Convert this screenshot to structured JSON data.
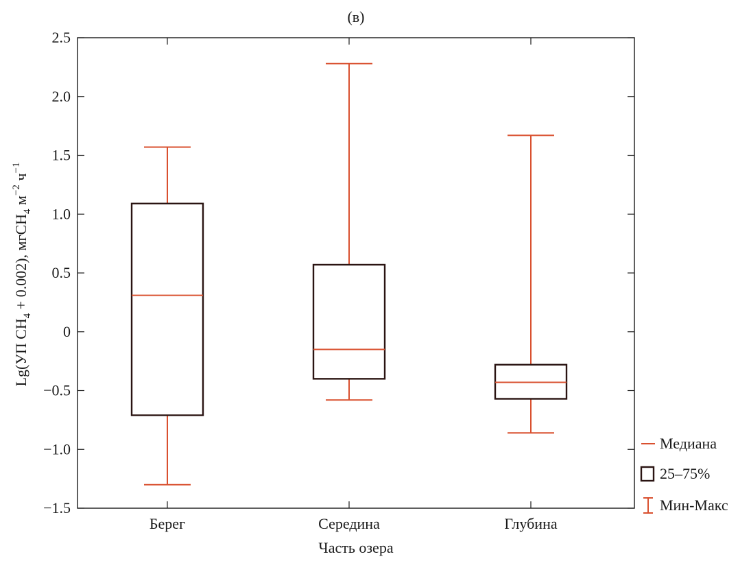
{
  "chart_data": {
    "type": "boxplot",
    "title": "(в)",
    "xlabel": "Часть озера",
    "ylabel": {
      "parts": [
        "Lg(УП CH",
        "4",
        " + 0.002), мгCH",
        "4",
        " м",
        "−2",
        " ч",
        "−1"
      ]
    },
    "ylim": [
      -1.5,
      2.5
    ],
    "yticks": [
      2.5,
      2.0,
      1.5,
      1.0,
      0.5,
      0,
      -0.5,
      -1.0,
      -1.5
    ],
    "ytick_labels": [
      "2.5",
      "2.0",
      "1.5",
      "1.0",
      "0.5",
      "0",
      "−0.5",
      "−1.0",
      "−1.5"
    ],
    "categories": [
      "Берег",
      "Середина",
      "Глубина"
    ],
    "boxes": [
      {
        "category": "Берег",
        "min": -1.3,
        "q1": -0.71,
        "median": 0.31,
        "q3": 1.09,
        "max": 1.57
      },
      {
        "category": "Середина",
        "min": -0.58,
        "q1": -0.4,
        "median": -0.15,
        "q3": 0.57,
        "max": 2.28
      },
      {
        "category": "Глубина",
        "min": -0.86,
        "q1": -0.57,
        "median": -0.43,
        "q3": -0.28,
        "max": 1.67
      }
    ],
    "legend": {
      "position": "right",
      "items": [
        {
          "symbol": "line",
          "label": "Медиана"
        },
        {
          "symbol": "box",
          "label": "25–75%"
        },
        {
          "symbol": "whisker",
          "label": "Мин-Макс"
        }
      ]
    },
    "colors": {
      "median": "#d9502f",
      "whisker": "#d9502f",
      "box": "#2a1412",
      "axis": "#1a1a1a"
    },
    "grid": false
  }
}
